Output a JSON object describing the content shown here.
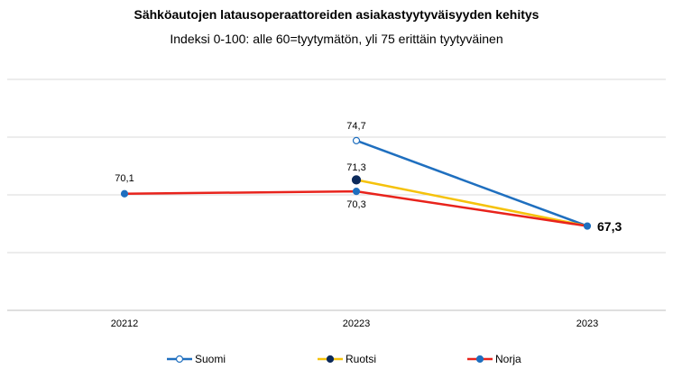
{
  "title": "Sähköautojen latausoperaattoreiden asiakastyytyväisyyden kehitys",
  "subtitle": "Indeksi 0-100: alle 60=tyytymätön, yli 75 erittäin tyytyväinen",
  "chart_data": {
    "type": "line",
    "title": "Sähköautojen latausoperaattoreiden asiakastyytyväisyyden kehitys",
    "subtitle": "Indeksi 0-100: alle 60=tyytymätön, yli 75 erittäin tyytyväinen",
    "categories": [
      "20212",
      "20223",
      "2023"
    ],
    "ylim": [
      60,
      80
    ],
    "grid": true,
    "legend_position": "bottom",
    "series": [
      {
        "name": "Suomi",
        "color": "#1f6fbf",
        "marker": "open-circle",
        "values": [
          null,
          74.7,
          67.3
        ]
      },
      {
        "name": "Ruotsi",
        "color": "#f5c20b",
        "marker": "navy-circle",
        "values": [
          null,
          71.3,
          67.3
        ]
      },
      {
        "name": "Norja",
        "color": "#e8231c",
        "marker": "blue-circle",
        "values": [
          70.1,
          70.3,
          67.3
        ]
      }
    ],
    "data_labels": [
      {
        "category": "20212",
        "text": "70,1"
      },
      {
        "category": "20223",
        "text": "74,7"
      },
      {
        "category": "20223",
        "text": "71,3"
      },
      {
        "category": "20223",
        "text": "70,3"
      },
      {
        "category": "2023",
        "text": "67,3"
      }
    ]
  }
}
